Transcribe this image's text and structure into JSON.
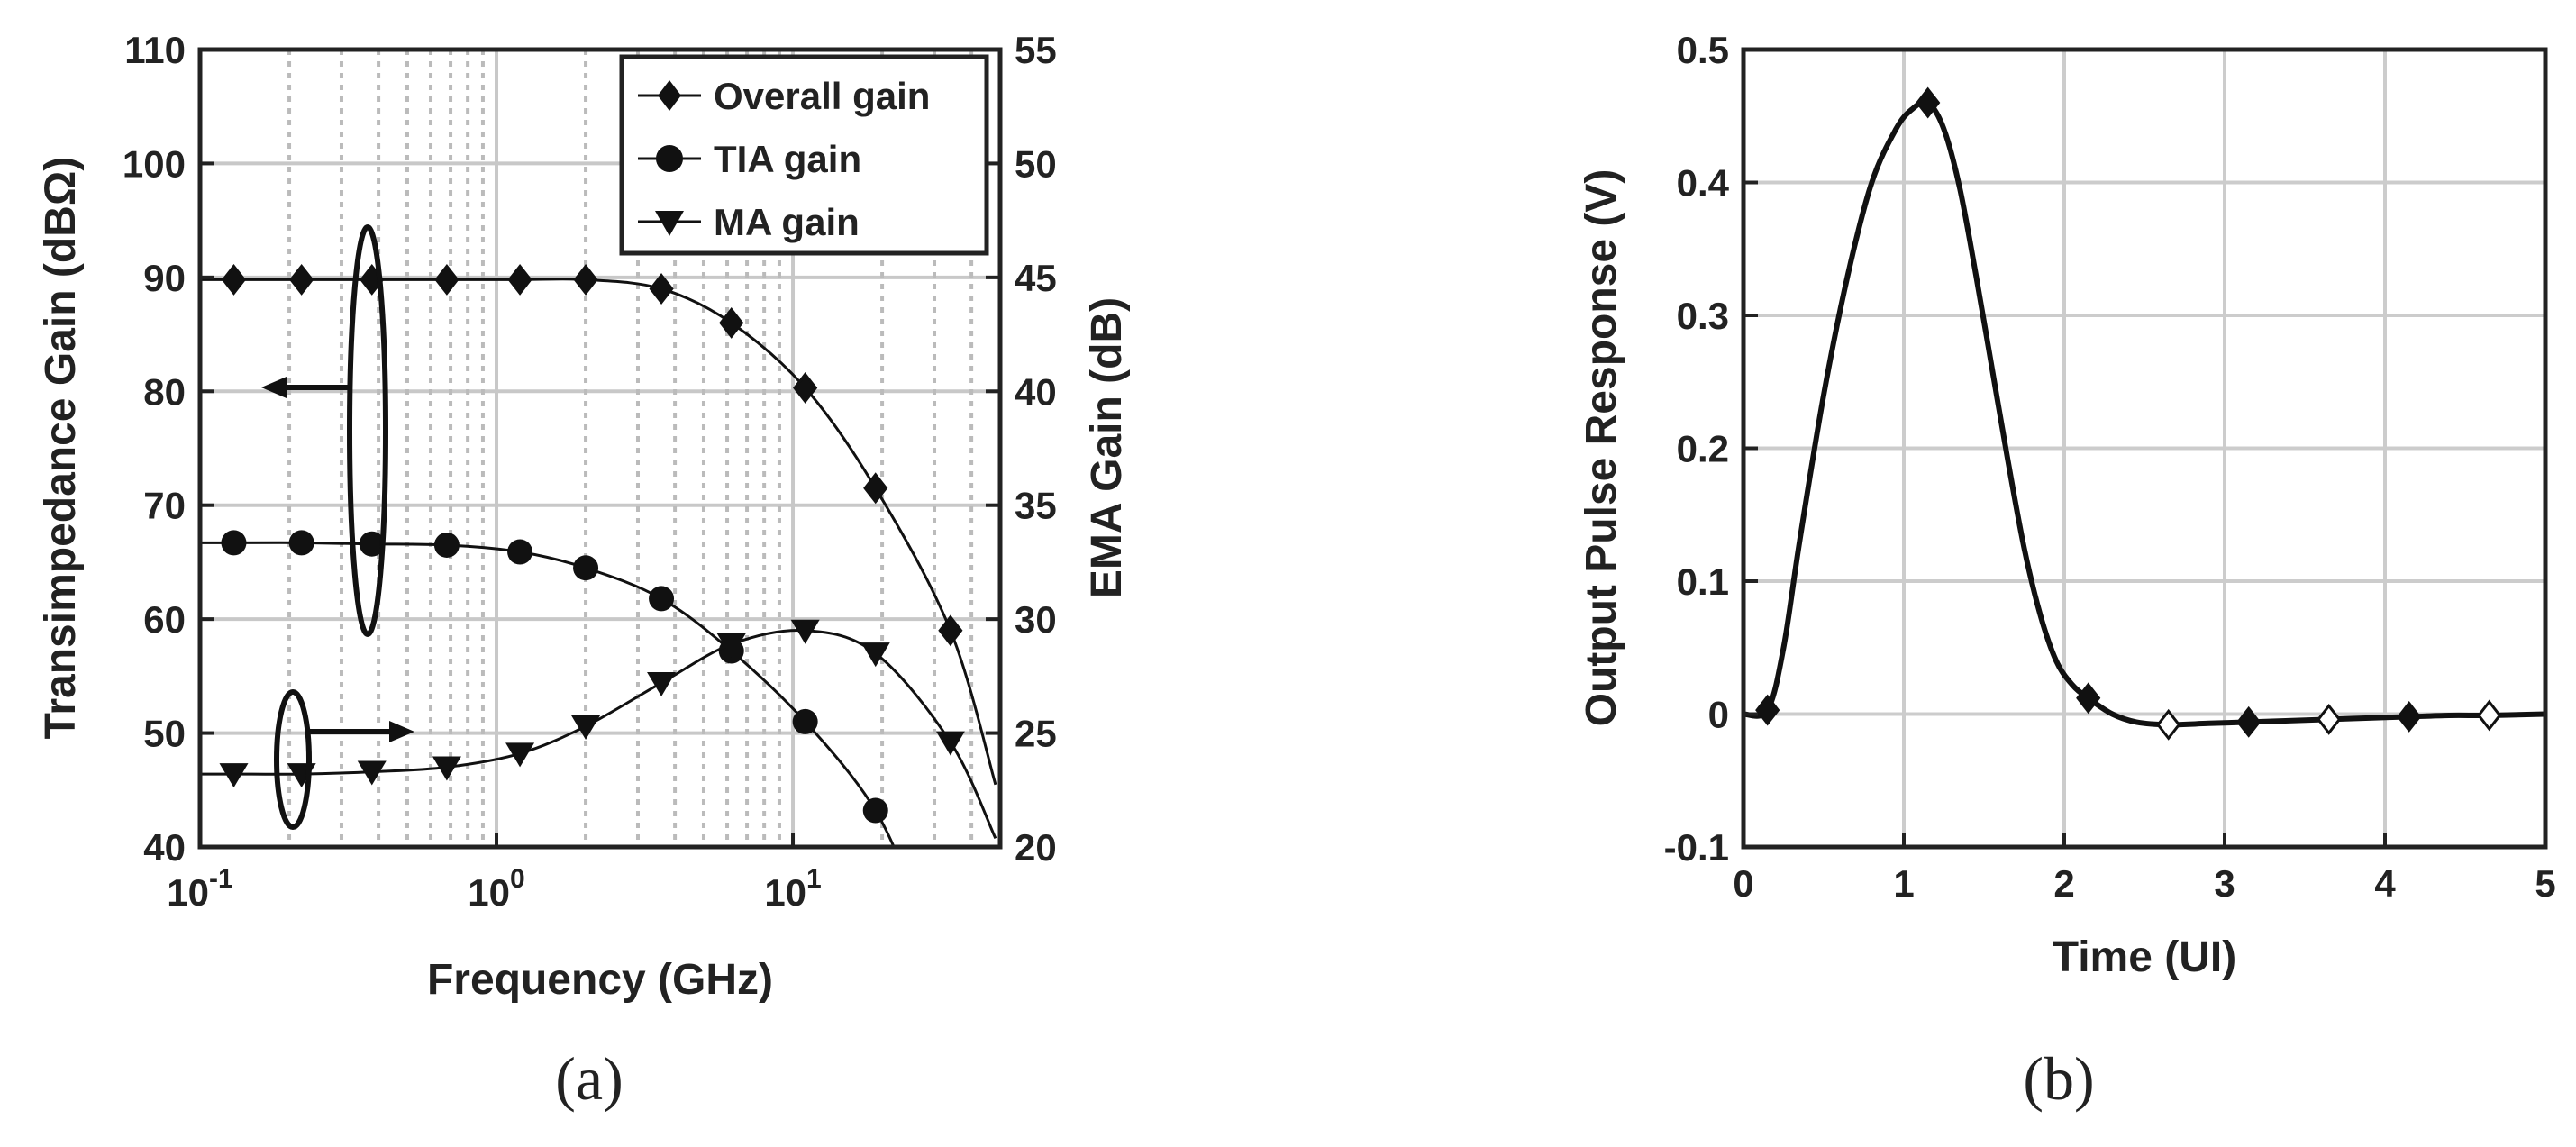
{
  "chart_data": [
    {
      "type": "line",
      "panel_label": "(a)",
      "xlabel": "Frequency (GHz)",
      "ylabel_left": "Transimpedance Gain (dBΩ)",
      "ylabel_right": "EMA Gain (dB)",
      "xscale": "log",
      "xlim": [
        0.1,
        50
      ],
      "ylim_left": [
        40,
        110
      ],
      "ylim_right": [
        20,
        55
      ],
      "x_ticks": [
        {
          "value": 0.1,
          "base": "10",
          "exp": "-1"
        },
        {
          "value": 1,
          "base": "10",
          "exp": "0"
        },
        {
          "value": 10,
          "base": "10",
          "exp": "1"
        }
      ],
      "y_ticks_left": [
        "40",
        "50",
        "60",
        "70",
        "80",
        "90",
        "100",
        "110"
      ],
      "y_ticks_right": [
        "20",
        "25",
        "30",
        "35",
        "40",
        "45",
        "50",
        "55"
      ],
      "legend_position": "top-right",
      "series": [
        {
          "name": "Overall gain",
          "axis": "left",
          "marker": "diamond",
          "x": [
            0.13,
            0.22,
            0.38,
            0.68,
            1.2,
            2.0,
            3.6,
            6.2,
            11,
            19,
            34
          ],
          "y": [
            89.8,
            89.8,
            89.8,
            89.8,
            89.8,
            89.8,
            89.0,
            86.0,
            80.3,
            71.5,
            59.0
          ]
        },
        {
          "name": "TIA gain",
          "axis": "left",
          "marker": "circle",
          "x": [
            0.13,
            0.22,
            0.38,
            0.68,
            1.2,
            2.0,
            3.6,
            6.2,
            11,
            19
          ],
          "y": [
            66.7,
            66.7,
            66.6,
            66.5,
            65.9,
            64.5,
            61.8,
            57.2,
            51.0,
            43.2
          ]
        },
        {
          "name": "MA gain",
          "axis": "right",
          "marker": "triangle-down",
          "x": [
            0.13,
            0.22,
            0.38,
            0.68,
            1.2,
            2.0,
            3.6,
            6.2,
            11,
            19,
            34
          ],
          "y": [
            23.2,
            23.2,
            23.3,
            23.5,
            24.1,
            25.3,
            27.2,
            28.9,
            29.5,
            28.5,
            24.6
          ]
        }
      ]
    },
    {
      "type": "line",
      "panel_label": "(b)",
      "xlabel": "Time (UI)",
      "ylabel": "Output Pulse Response (V)",
      "xlim": [
        0,
        5
      ],
      "ylim": [
        -0.1,
        0.5
      ],
      "x_ticks": [
        "0",
        "1",
        "2",
        "3",
        "4",
        "5"
      ],
      "y_ticks": [
        "-0.1",
        "0",
        "0.1",
        "0.2",
        "0.3",
        "0.4",
        "0.5"
      ],
      "curve_x": [
        0.0,
        0.15,
        0.25,
        0.35,
        0.5,
        0.65,
        0.8,
        0.95,
        1.05,
        1.15,
        1.25,
        1.35,
        1.45,
        1.55,
        1.65,
        1.75,
        1.85,
        1.95,
        2.05,
        2.15,
        2.3,
        2.45,
        2.65,
        2.9,
        3.15,
        3.4,
        3.65,
        3.9,
        4.15,
        4.4,
        4.65,
        5.0
      ],
      "curve_y": [
        0.0,
        0.003,
        0.05,
        0.13,
        0.24,
        0.33,
        0.4,
        0.44,
        0.455,
        0.46,
        0.44,
        0.395,
        0.33,
        0.26,
        0.19,
        0.125,
        0.075,
        0.04,
        0.022,
        0.012,
        0.0,
        -0.006,
        -0.008,
        -0.007,
        -0.006,
        -0.005,
        -0.004,
        -0.003,
        -0.002,
        -0.001,
        -0.001,
        0.0
      ],
      "markers_filled": {
        "x": [
          0.15,
          1.15,
          2.15,
          3.15,
          4.15
        ],
        "y": [
          0.003,
          0.46,
          0.012,
          -0.006,
          -0.002
        ]
      },
      "markers_open": {
        "x": [
          2.65,
          3.65,
          4.65
        ],
        "y": [
          -0.008,
          -0.004,
          -0.001
        ]
      }
    }
  ]
}
